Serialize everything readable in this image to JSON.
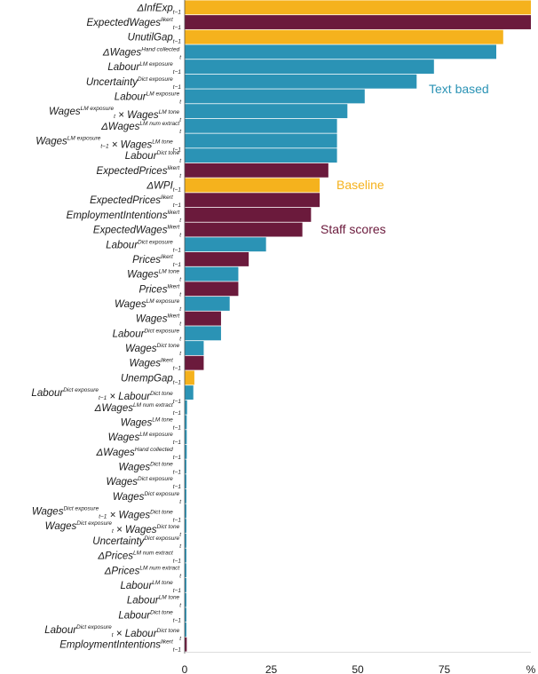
{
  "chart_data": {
    "type": "bar",
    "orientation": "horizontal",
    "xlim": [
      0,
      100
    ],
    "x_unit": "%",
    "x_ticks": [
      0,
      25,
      50,
      75
    ],
    "colors": {
      "Baseline": "#f5b21d",
      "Staff scores": "#6b1a3c",
      "Text based": "#2b93b5"
    },
    "annotations": [
      {
        "text": "Text based",
        "group": "Text based"
      },
      {
        "text": "Baseline",
        "group": "Baseline"
      },
      {
        "text": "Staff scores",
        "group": "Staff scores"
      }
    ],
    "bars": [
      {
        "base": "ΔInfExp",
        "sub": "t−1",
        "sup": "",
        "suffix": "",
        "group": "Baseline",
        "value": 100
      },
      {
        "base": "ExpectedWages",
        "sub": "t−1",
        "sup": "likert",
        "suffix": "",
        "group": "Staff scores",
        "value": 100
      },
      {
        "base": "UnutilGap",
        "sub": "t−1",
        "sup": "",
        "suffix": "",
        "group": "Baseline",
        "value": 92
      },
      {
        "base": "ΔWages",
        "sub": "t",
        "sup": "Hand collected",
        "suffix": "",
        "group": "Text based",
        "value": 90
      },
      {
        "base": "Labour",
        "sub": "t−1",
        "sup": "LM exposure",
        "suffix": "",
        "group": "Text based",
        "value": 72
      },
      {
        "base": "Uncertainty",
        "sub": "t−1",
        "sup": "Dict exposure",
        "suffix": "",
        "group": "Text based",
        "value": 67
      },
      {
        "base": "Labour",
        "sub": "t",
        "sup": "LM exposure",
        "suffix": "",
        "group": "Text based",
        "value": 52
      },
      {
        "base": "Wages",
        "sub": "t",
        "sup": "LM exposure",
        "suffix": " ×  Wages",
        "sub2": "t",
        "sup2": "LM tone",
        "group": "Text based",
        "value": 47
      },
      {
        "base": "ΔWages",
        "sub": "t",
        "sup": "LM num extract",
        "suffix": "",
        "group": "Text based",
        "value": 44
      },
      {
        "base": "Wages",
        "sub": "t−1",
        "sup": "LM exposure",
        "suffix": " ×  Wages",
        "sub2": "t−1",
        "sup2": "LM tone",
        "group": "Text based",
        "value": 44
      },
      {
        "base": "Labour",
        "sub": "t",
        "sup": "Dict tone",
        "suffix": "",
        "group": "Text based",
        "value": 44
      },
      {
        "base": "ExpectedPrices",
        "sub": "t",
        "sup": "likert",
        "suffix": "",
        "group": "Staff scores",
        "value": 41.5
      },
      {
        "base": "ΔWPI",
        "sub": "t−1",
        "sup": "",
        "suffix": "",
        "group": "Baseline",
        "value": 39
      },
      {
        "base": "ExpectedPrices",
        "sub": "t−1",
        "sup": "likert",
        "suffix": "",
        "group": "Staff scores",
        "value": 39
      },
      {
        "base": "EmploymentIntentions",
        "sub": "t",
        "sup": "likert",
        "suffix": "",
        "group": "Staff scores",
        "value": 36.5
      },
      {
        "base": "ExpectedWages",
        "sub": "t",
        "sup": "likert",
        "suffix": "",
        "group": "Staff scores",
        "value": 34
      },
      {
        "base": "Labour",
        "sub": "t−1",
        "sup": "Dict exposure",
        "suffix": "",
        "group": "Text based",
        "value": 23.5
      },
      {
        "base": "Prices",
        "sub": "t−1",
        "sup": "likert",
        "suffix": "",
        "group": "Staff scores",
        "value": 18.5
      },
      {
        "base": "Wages",
        "sub": "t",
        "sup": "LM tone",
        "suffix": "",
        "group": "Text based",
        "value": 15.5
      },
      {
        "base": "Prices",
        "sub": "t",
        "sup": "likert",
        "suffix": "",
        "group": "Staff scores",
        "value": 15.5
      },
      {
        "base": "Wages",
        "sub": "t",
        "sup": "LM exposure",
        "suffix": "",
        "group": "Text based",
        "value": 13
      },
      {
        "base": "Wages",
        "sub": "t",
        "sup": "likert",
        "suffix": "",
        "group": "Staff scores",
        "value": 10.5
      },
      {
        "base": "Labour",
        "sub": "t",
        "sup": "Dict exposure",
        "suffix": "",
        "group": "Text based",
        "value": 10.5
      },
      {
        "base": "Wages",
        "sub": "t",
        "sup": "Dict tone",
        "suffix": "",
        "group": "Text based",
        "value": 5.5
      },
      {
        "base": "Wages",
        "sub": "t−1",
        "sup": "likert",
        "suffix": "",
        "group": "Staff scores",
        "value": 5.5
      },
      {
        "base": "UnempGap",
        "sub": "t−1",
        "sup": "",
        "suffix": "",
        "group": "Baseline",
        "value": 2.8
      },
      {
        "base": "Labour",
        "sub": "t−1",
        "sup": "Dict exposure",
        "suffix": " ×  Labour",
        "sub2": "t−1",
        "sup2": "Dict tone",
        "group": "Text based",
        "value": 2.5
      },
      {
        "base": "ΔWages",
        "sub": "t−1",
        "sup": "LM num extract",
        "suffix": "",
        "group": "Text based",
        "value": 0.7
      },
      {
        "base": "Wages",
        "sub": "t−1",
        "sup": "LM tone",
        "suffix": "",
        "group": "Text based",
        "value": 0.6
      },
      {
        "base": "Wages",
        "sub": "t−1",
        "sup": "LM exposure",
        "suffix": "",
        "group": "Text based",
        "value": 0.6
      },
      {
        "base": "ΔWages",
        "sub": "t−1",
        "sup": "Hand collected",
        "suffix": "",
        "group": "Text based",
        "value": 0.6
      },
      {
        "base": "Wages",
        "sub": "t−1",
        "sup": "Dict tone",
        "suffix": "",
        "group": "Text based",
        "value": 0.5
      },
      {
        "base": "Wages",
        "sub": "t−1",
        "sup": "Dict exposure",
        "suffix": "",
        "group": "Text based",
        "value": 0.5
      },
      {
        "base": "Wages",
        "sub": "t",
        "sup": "Dict exposure",
        "suffix": "",
        "group": "Text based",
        "value": 0.5
      },
      {
        "base": "Wages",
        "sub": "t−1",
        "sup": "Dict exposure",
        "suffix": " ×  Wages",
        "sub2": "t−1",
        "sup2": "Dict tone",
        "group": "Text based",
        "value": 0.5
      },
      {
        "base": "Wages",
        "sub": "t",
        "sup": "Dict exposure",
        "suffix": " ×  Wages",
        "sub2": "t",
        "sup2": "Dict tone",
        "group": "Text based",
        "value": 0.5
      },
      {
        "base": "Uncertainty",
        "sub": "t",
        "sup": "Dict exposure",
        "suffix": "",
        "group": "Text based",
        "value": 0.5
      },
      {
        "base": "ΔPrices",
        "sub": "t−1",
        "sup": "LM num extract",
        "suffix": "",
        "group": "Text based",
        "value": 0.5
      },
      {
        "base": "ΔPrices",
        "sub": "t",
        "sup": "LM num extract",
        "suffix": "",
        "group": "Text based",
        "value": 0.5
      },
      {
        "base": "Labour",
        "sub": "t−1",
        "sup": "LM tone",
        "suffix": "",
        "group": "Text based",
        "value": 0.5
      },
      {
        "base": "Labour",
        "sub": "t",
        "sup": "LM tone",
        "suffix": "",
        "group": "Text based",
        "value": 0.5
      },
      {
        "base": "Labour",
        "sub": "t−1",
        "sup": "Dict tone",
        "suffix": "",
        "group": "Text based",
        "value": 0.5
      },
      {
        "base": "Labour",
        "sub": "t",
        "sup": "Dict exposure",
        "suffix": " ×  Labour",
        "sub2": "t",
        "sup2": "Dict tone",
        "group": "Text based",
        "value": 0.5
      },
      {
        "base": "EmploymentIntentions",
        "sub": "t−1",
        "sup": "likert",
        "suffix": "",
        "group": "Staff scores",
        "value": 0.6
      }
    ]
  }
}
